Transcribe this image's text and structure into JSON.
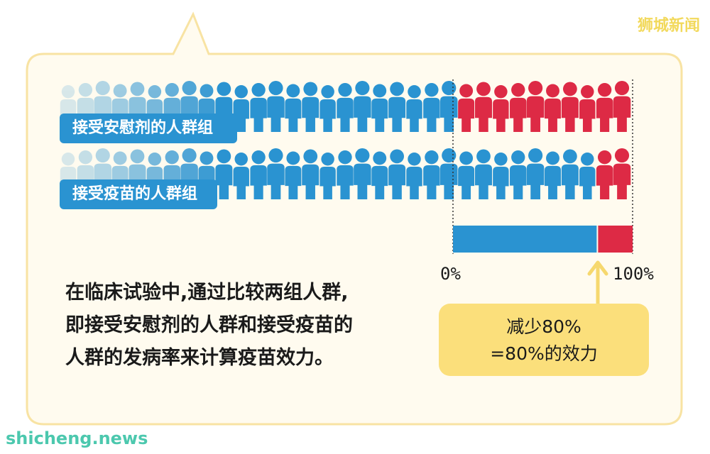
{
  "watermark_top": "狮城新闻",
  "watermark_bottom": "shicheng.news",
  "groups": {
    "placebo_label": "接受安慰剂的人群组",
    "vaccine_label": "接受疫苗的人群组"
  },
  "figures": {
    "per_row": 33,
    "placebo_sick": 10,
    "vaccine_sick": 2
  },
  "bar": {
    "efficacy_fraction": 0.8,
    "blue_color": "#2a93d1",
    "red_color": "#dd2a45",
    "tick_start": "0%",
    "tick_end": "100%"
  },
  "explanation": {
    "line1": "在临床试验中,通过比较两组人群,",
    "line2": "即接受安慰剂的人群和接受疫苗的",
    "line3": "人群的发病率来计算疫苗效力。"
  },
  "result": {
    "line1": "减少80%",
    "line2": "=80%的效力"
  },
  "colors": {
    "panel_bg": "#fffbef",
    "panel_border": "#f8e3a3",
    "result_bg": "#fbdf7b",
    "arrow": "#f6d86e"
  }
}
